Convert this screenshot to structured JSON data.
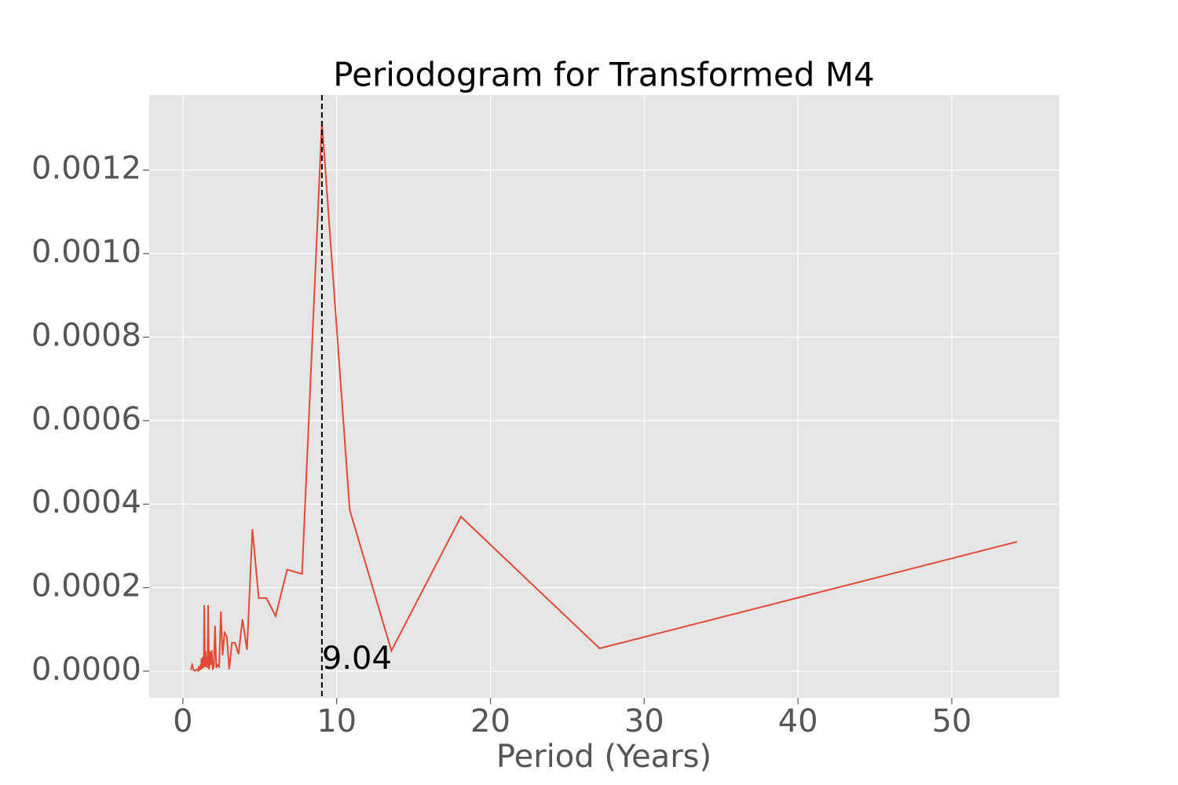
{
  "chart_data": {
    "type": "line",
    "title": "Periodogram for Transformed M4",
    "xlabel": "Period (Years)",
    "x": [
      0.52,
      0.6,
      0.7,
      0.8,
      0.9,
      1.0,
      1.02,
      1.04,
      1.06,
      1.09,
      1.11,
      1.13,
      1.15,
      1.18,
      1.21,
      1.23,
      1.26,
      1.29,
      1.32,
      1.36,
      1.39,
      1.43,
      1.47,
      1.51,
      1.55,
      1.6,
      1.64,
      1.7,
      1.75,
      1.81,
      1.87,
      1.94,
      2.01,
      2.09,
      2.17,
      2.26,
      2.36,
      2.47,
      2.58,
      2.71,
      2.86,
      3.01,
      3.19,
      3.39,
      3.62,
      3.875,
      4.17,
      4.52,
      4.93,
      5.43,
      6.03,
      6.78,
      7.75,
      9.04,
      10.85,
      13.56,
      18.08,
      27.1,
      54.25
    ],
    "series": [
      {
        "name": "periodogram",
        "color": "#E24A33",
        "values": [
          3e-06,
          1.5e-05,
          2e-06,
          1e-06,
          4e-06,
          1e-06,
          1.2e-05,
          3e-06,
          1e-05,
          2e-06,
          4e-06,
          8e-06,
          1.6e-05,
          4e-06,
          2.8e-05,
          3.1e-05,
          6e-06,
          2.1e-05,
          3.5e-05,
          8e-06,
          0.000158,
          1e-05,
          4.8e-05,
          1e-05,
          3.4e-05,
          8e-06,
          0.000158,
          4e-06,
          4.7e-05,
          1.5e-05,
          5e-05,
          6e-06,
          1e-05,
          0.000109,
          8e-06,
          1.5e-05,
          1.1e-05,
          0.000143,
          3.8e-05,
          9.2e-05,
          8.3e-05,
          4e-06,
          6.8e-05,
          6.8e-05,
          4.1e-05,
          0.000124,
          5.1e-05,
          0.00034,
          0.000175,
          0.000175,
          0.000132,
          0.000243,
          0.000233,
          0.001317,
          0.000386,
          4.9e-05,
          0.00037,
          5.45e-05,
          0.00031
        ]
      }
    ],
    "vline": 9.04,
    "xlim": [
      -2.19,
      57.0
    ],
    "ylim": [
      -6.4e-05,
      0.00138
    ],
    "xticks": [
      0,
      10,
      20,
      30,
      40,
      50
    ],
    "yticks": [
      {
        "value": 0,
        "label": "0.0000"
      },
      {
        "value": 0.0002,
        "label": "0.0002"
      },
      {
        "value": 0.0004,
        "label": "0.0004"
      },
      {
        "value": 0.0006,
        "label": "0.0006"
      },
      {
        "value": 0.0008,
        "label": "0.0008"
      },
      {
        "value": 0.001,
        "label": "0.0010"
      },
      {
        "value": 0.0012,
        "label": "0.0012"
      }
    ],
    "grid": true
  }
}
